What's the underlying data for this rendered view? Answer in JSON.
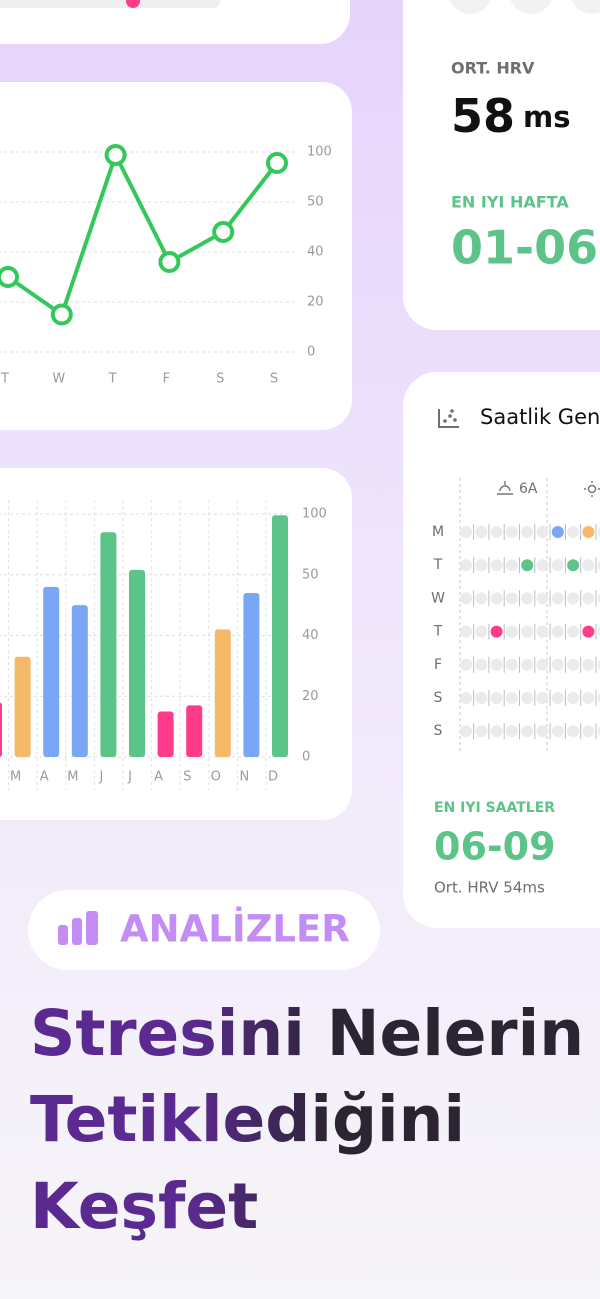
{
  "chart_data": [
    {
      "type": "line",
      "categories": [
        "T",
        "W",
        "T",
        "F",
        "S",
        "S"
      ],
      "series": [
        {
          "color": "#34c759",
          "values": [
            30,
            15,
            97,
            36,
            44,
            89
          ]
        }
      ],
      "ylim": [
        0,
        100
      ],
      "yticks": [
        0,
        20,
        40,
        50,
        100
      ],
      "grid": true
    },
    {
      "type": "bar",
      "categories": [
        null,
        "M",
        "A",
        "M",
        "J",
        "J",
        "A",
        "S",
        "O",
        "N",
        "D"
      ],
      "values": [
        18,
        33,
        48,
        45,
        85,
        54,
        15,
        17,
        41,
        47,
        99
      ],
      "colors": [
        "#ff3b8b",
        "#f5b96a",
        "#7aa7f5",
        "#7aa7f5",
        "#5cc488",
        "#5cc488",
        "#ff3b8b",
        "#ff3b8b",
        "#f5b96a",
        "#7aa7f5",
        "#5cc488"
      ],
      "ylim": [
        0,
        100
      ],
      "yticks": [
        0,
        20,
        40,
        50,
        100
      ],
      "grid": true
    }
  ],
  "hrv_card": {
    "avg_label": "ORT. HRV",
    "avg_value": "58",
    "avg_unit": "ms",
    "best_week_label": "EN IYI HAFTA",
    "best_week": "01-06"
  },
  "hourly_card": {
    "title": "Saatlik Gen",
    "time_label": "6A",
    "days": [
      "M",
      "T",
      "W",
      "T",
      "F",
      "S",
      "S"
    ],
    "best_hours_label": "EN IYI SAATLER",
    "best_hours": "06-09",
    "avg_note": "Ort. HRV 54ms"
  },
  "badge": "ANALİZLER",
  "headline": [
    "Stresini Nelerin",
    "Tetiklediğini",
    "Keşfet"
  ]
}
